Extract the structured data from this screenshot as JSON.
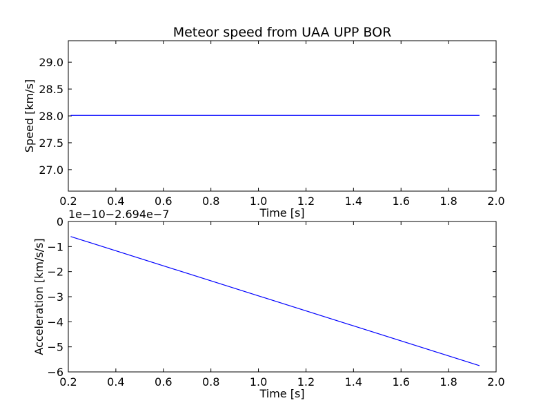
{
  "figure": {
    "title": "Meteor speed from  UAA UPP BOR"
  },
  "chart_data": [
    {
      "type": "line",
      "title": "Meteor speed from  UAA UPP BOR",
      "xlabel": "Time [s]",
      "ylabel": "Speed [km/s]",
      "xlim": [
        0.2,
        2.0
      ],
      "ylim": [
        26.6,
        29.4
      ],
      "x_ticks": [
        "0.2",
        "0.4",
        "0.6",
        "0.8",
        "1.0",
        "1.2",
        "1.4",
        "1.6",
        "1.8",
        "2.0"
      ],
      "y_ticks": [
        "27.0",
        "27.5",
        "28.0",
        "28.5",
        "29.0"
      ],
      "grid": false,
      "series": [
        {
          "color": "#0000ff",
          "x": [
            0.21,
            1.93
          ],
          "y": [
            28.01,
            28.01
          ]
        }
      ]
    },
    {
      "type": "line",
      "xlabel": "Time [s]",
      "ylabel": "Acceleration [km/s/s]",
      "offset_text": "1e−10−2.694e−7",
      "xlim": [
        0.2,
        2.0
      ],
      "ylim": [
        -6,
        0
      ],
      "x_ticks": [
        "0.2",
        "0.4",
        "0.6",
        "0.8",
        "1.0",
        "1.2",
        "1.4",
        "1.6",
        "1.8",
        "2.0"
      ],
      "y_ticks": [
        "0",
        "−1",
        "−2",
        "−3",
        "−4",
        "−5",
        "−6"
      ],
      "grid": false,
      "series": [
        {
          "color": "#0000ff",
          "x": [
            0.21,
            1.93
          ],
          "y": [
            -0.6,
            -5.75
          ]
        }
      ]
    }
  ]
}
